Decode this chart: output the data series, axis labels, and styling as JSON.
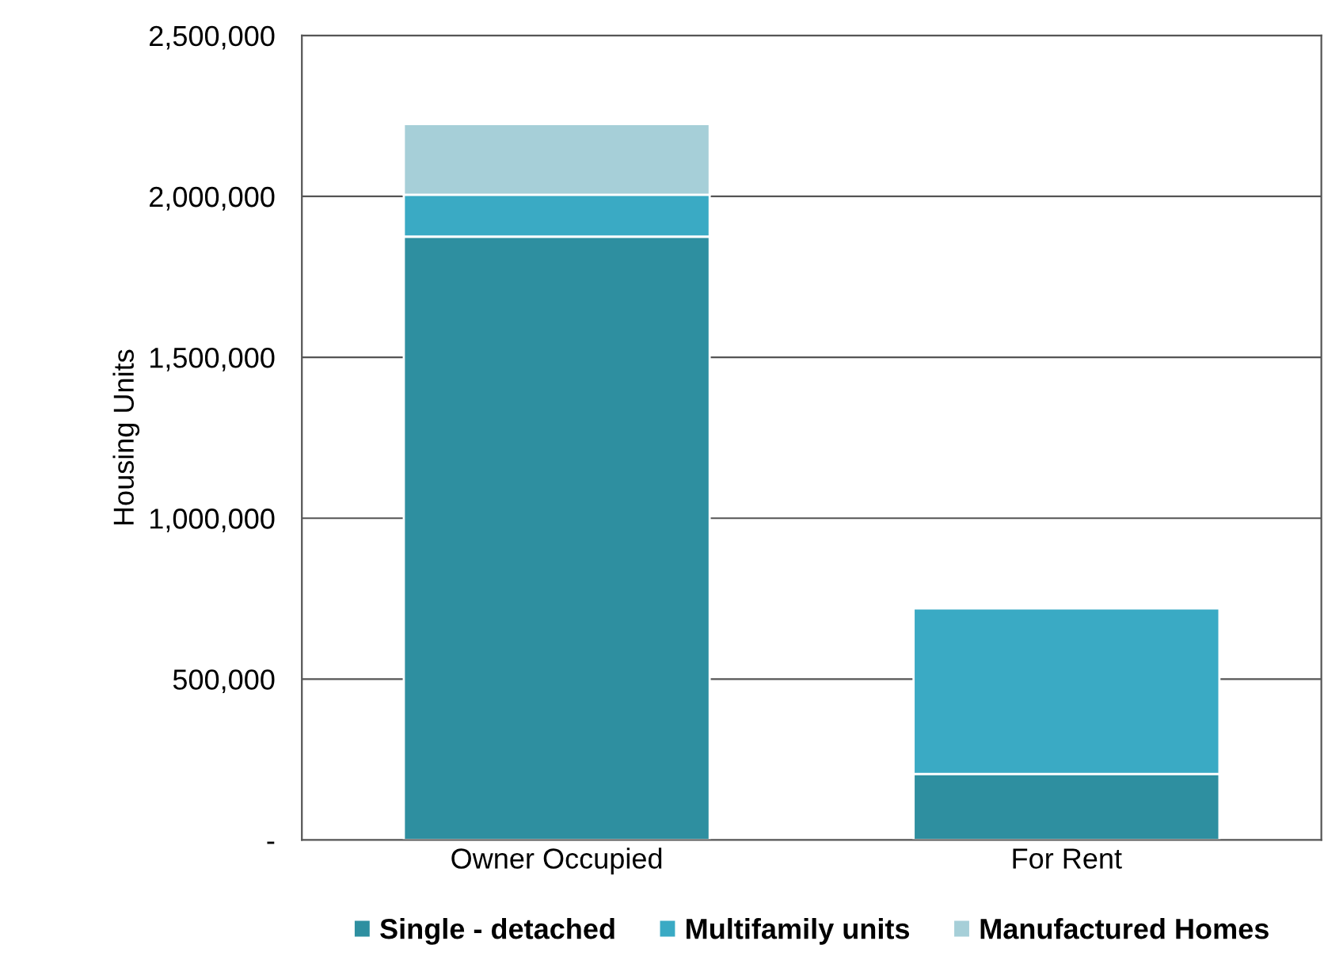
{
  "chart_data": {
    "type": "bar",
    "stacked": true,
    "ylabel": "Housing Units",
    "categories": [
      "Owner Occupied",
      "For Rent"
    ],
    "series": [
      {
        "name": "Single - detached",
        "color": "#2e8fa0",
        "values": [
          1875000,
          205000
        ]
      },
      {
        "name": "Multifamily units",
        "color": "#3aaac4",
        "values": [
          130000,
          515000
        ]
      },
      {
        "name": "Manufactured Homes",
        "color": "#a6cfd8",
        "values": [
          220000,
          null
        ]
      }
    ],
    "ylim": [
      0,
      2500000
    ],
    "yticks": [
      {
        "value": 0,
        "label": "-"
      },
      {
        "value": 500000,
        "label": "500,000"
      },
      {
        "value": 1000000,
        "label": "1,000,000"
      },
      {
        "value": 1500000,
        "label": "1,500,000"
      },
      {
        "value": 2000000,
        "label": "2,000,000"
      },
      {
        "value": 2500000,
        "label": "2,500,000"
      }
    ],
    "grid": "y",
    "legend": "bottom"
  }
}
